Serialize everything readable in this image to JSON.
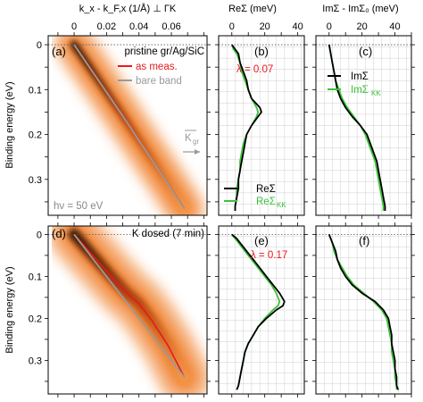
{
  "colors": {
    "red": "#e8191c",
    "gray": "#9a9a9a",
    "green": "#3bc23b",
    "black": "#000000",
    "mapLow": "#ffffff",
    "mapMid": "#f07f2a",
    "mapHigh": "#2a0b00",
    "grid": "#cfcfcf"
  },
  "arpes_axis": {
    "title": "k_x - k_F,x (1/Å) ⊥ ΓK",
    "ticks": [
      "0",
      "0.02",
      "0.04",
      "0.06"
    ],
    "tick_values": [
      0,
      0.02,
      0.04,
      0.06
    ],
    "xlim": [
      -0.016,
      0.082
    ]
  },
  "rs_axis": {
    "title": "ReΣ  (meV)",
    "ticks": [
      "0",
      "20",
      "40"
    ],
    "tick_values": [
      0,
      20,
      40
    ],
    "xlim": [
      -8,
      44
    ]
  },
  "is_axis": {
    "title": "ImΣ - ImΣ₀ (meV)",
    "ticks": [
      "0",
      "20",
      "40"
    ],
    "tick_values": [
      0,
      20,
      40
    ],
    "xlim": [
      -8,
      50
    ]
  },
  "y_axis": {
    "label": "Binding energy (eV)",
    "ticks": [
      "0",
      "0.1",
      "0.2",
      "0.3"
    ],
    "tick_values": [
      0,
      0.1,
      0.2,
      0.3
    ],
    "ylim": [
      -0.02,
      0.38
    ]
  },
  "panels": {
    "a": {
      "tag": "(a)",
      "title": "pristine gr/Ag/SiC",
      "legend_meas": "as meas.",
      "legend_bare": "bare band",
      "kgr_label": "K",
      "kgr_sub": "gr",
      "photon": "hν = 50 eV"
    },
    "b": {
      "tag": "(b)",
      "lambda": "λ = 0.07",
      "legend_re": "ReΣ",
      "legend_kk": "ReΣ",
      "legend_kk_sub": "KK"
    },
    "c": {
      "tag": "(c)",
      "legend_im": "ImΣ",
      "legend_kk": "ImΣ",
      "legend_kk_sub": "KK"
    },
    "d": {
      "tag": "(d)",
      "title": "K dosed (7 min)"
    },
    "e": {
      "tag": "(e)",
      "lambda": "λ = 0.17"
    },
    "f": {
      "tag": "(f)"
    }
  },
  "chart_data": [
    {
      "type": "heatmap",
      "panel": "a",
      "xlabel": "k_x - k_F,x (1/Å) ⊥ ΓK",
      "ylabel": "Binding energy (eV)",
      "xlim": [
        -0.016,
        0.082
      ],
      "ylim": [
        -0.02,
        0.38
      ],
      "series": [
        {
          "name": "as meas.",
          "x": [
            0.0,
            0.01,
            0.02,
            0.03,
            0.04,
            0.05,
            0.06,
            0.068
          ],
          "y": [
            0.0,
            0.052,
            0.105,
            0.158,
            0.212,
            0.266,
            0.32,
            0.365
          ]
        },
        {
          "name": "bare band",
          "x": [
            0.0,
            0.01,
            0.02,
            0.03,
            0.04,
            0.05,
            0.06,
            0.068
          ],
          "y": [
            0.0,
            0.053,
            0.106,
            0.159,
            0.213,
            0.267,
            0.321,
            0.366
          ]
        }
      ]
    },
    {
      "type": "line",
      "panel": "b",
      "xlabel": "ReΣ  (meV)",
      "xlim": [
        -8,
        44
      ],
      "ylim": [
        -0.02,
        0.38
      ],
      "series": [
        {
          "name": "ReΣ",
          "y": [
            0.0,
            0.01,
            0.02,
            0.04,
            0.06,
            0.08,
            0.1,
            0.12,
            0.14,
            0.15,
            0.16,
            0.18,
            0.2,
            0.22,
            0.24,
            0.26,
            0.28,
            0.3,
            0.32,
            0.34,
            0.36,
            0.37
          ],
          "x": [
            0,
            2,
            4,
            5,
            7,
            9,
            10,
            12,
            17,
            18,
            16,
            12,
            9,
            8,
            7,
            6,
            5,
            4,
            4,
            3,
            2,
            2
          ]
        },
        {
          "name": "ReΣ_KK",
          "y": [
            0.0,
            0.01,
            0.02,
            0.04,
            0.06,
            0.08,
            0.1,
            0.12,
            0.14,
            0.15,
            0.16,
            0.18,
            0.2,
            0.22,
            0.24,
            0.26,
            0.28,
            0.3,
            0.32,
            0.34,
            0.36,
            0.37
          ],
          "x": [
            0,
            1,
            3,
            5,
            6,
            8,
            10,
            12,
            15,
            16,
            15,
            12,
            9,
            7,
            6,
            5,
            5,
            4,
            3,
            3,
            2,
            2
          ]
        }
      ]
    },
    {
      "type": "line",
      "panel": "c",
      "xlabel": "ImΣ - ImΣ₀ (meV)",
      "xlim": [
        -8,
        50
      ],
      "ylim": [
        -0.02,
        0.38
      ],
      "series": [
        {
          "name": "ImΣ",
          "y": [
            0.0,
            0.02,
            0.04,
            0.06,
            0.08,
            0.1,
            0.12,
            0.14,
            0.16,
            0.18,
            0.2,
            0.22,
            0.24,
            0.26,
            0.28,
            0.3,
            0.32,
            0.34,
            0.36,
            0.37
          ],
          "x": [
            0,
            1,
            2,
            3,
            4,
            5,
            7,
            10,
            14,
            19,
            23,
            25,
            27,
            29,
            30,
            31,
            32,
            33,
            34,
            34
          ]
        },
        {
          "name": "ImΣ_KK",
          "y": [
            0.0,
            0.02,
            0.04,
            0.06,
            0.08,
            0.1,
            0.12,
            0.14,
            0.16,
            0.18,
            0.2,
            0.22,
            0.24,
            0.26,
            0.28,
            0.3,
            0.32,
            0.34,
            0.36,
            0.37
          ],
          "x": [
            0,
            1,
            2,
            3,
            4,
            6,
            8,
            11,
            15,
            19,
            22,
            24,
            26,
            28,
            29,
            30,
            31,
            32,
            33,
            33
          ]
        }
      ]
    },
    {
      "type": "heatmap",
      "panel": "d",
      "xlabel": "k_x - k_F,x (1/Å) ⊥ ΓK",
      "ylabel": "Binding energy (eV)",
      "xlim": [
        -0.016,
        0.082
      ],
      "ylim": [
        -0.02,
        0.38
      ],
      "series": [
        {
          "name": "as meas.",
          "x": [
            0.0,
            0.008,
            0.016,
            0.024,
            0.032,
            0.04,
            0.048,
            0.058,
            0.068
          ],
          "y": [
            0.0,
            0.035,
            0.07,
            0.105,
            0.138,
            0.165,
            0.205,
            0.265,
            0.34
          ]
        },
        {
          "name": "bare band",
          "x": [
            0.0,
            0.01,
            0.02,
            0.03,
            0.04,
            0.05,
            0.06,
            0.068
          ],
          "y": [
            0.0,
            0.05,
            0.1,
            0.15,
            0.2,
            0.25,
            0.3,
            0.34
          ]
        }
      ]
    },
    {
      "type": "line",
      "panel": "e",
      "xlabel": "ReΣ  (meV)",
      "xlim": [
        -8,
        44
      ],
      "ylim": [
        -0.02,
        0.38
      ],
      "series": [
        {
          "name": "ReΣ",
          "y": [
            0.0,
            0.01,
            0.02,
            0.04,
            0.06,
            0.08,
            0.1,
            0.12,
            0.14,
            0.16,
            0.17,
            0.18,
            0.2,
            0.22,
            0.24,
            0.26,
            0.28,
            0.3,
            0.32,
            0.34,
            0.36,
            0.37
          ],
          "x": [
            0,
            3,
            5,
            9,
            13,
            17,
            21,
            25,
            29,
            32,
            31,
            27,
            21,
            16,
            13,
            10,
            8,
            7,
            6,
            5,
            4,
            3
          ]
        },
        {
          "name": "ReΣ_KK",
          "y": [
            0.0,
            0.01,
            0.02,
            0.04,
            0.06,
            0.08,
            0.1,
            0.12,
            0.14,
            0.16,
            0.17,
            0.18,
            0.2,
            0.22,
            0.24,
            0.26,
            0.28,
            0.3,
            0.32,
            0.34,
            0.36,
            0.37
          ],
          "x": [
            0,
            2,
            4,
            8,
            12,
            16,
            20,
            24,
            27,
            29,
            28,
            25,
            20,
            16,
            13,
            10,
            8,
            7,
            6,
            5,
            4,
            3
          ]
        }
      ]
    },
    {
      "type": "line",
      "panel": "f",
      "xlabel": "ImΣ - ImΣ₀ (meV)",
      "xlim": [
        -8,
        50
      ],
      "ylim": [
        -0.02,
        0.38
      ],
      "series": [
        {
          "name": "ImΣ",
          "y": [
            0.0,
            0.02,
            0.04,
            0.06,
            0.08,
            0.1,
            0.12,
            0.14,
            0.16,
            0.18,
            0.2,
            0.22,
            0.24,
            0.26,
            0.28,
            0.3,
            0.32,
            0.34,
            0.36,
            0.37
          ],
          "x": [
            0,
            2,
            4,
            5,
            7,
            10,
            14,
            20,
            28,
            33,
            36,
            37,
            38,
            38,
            39,
            40,
            40,
            41,
            41,
            42
          ]
        },
        {
          "name": "ImΣ_KK",
          "y": [
            0.0,
            0.02,
            0.04,
            0.06,
            0.08,
            0.1,
            0.12,
            0.14,
            0.16,
            0.18,
            0.2,
            0.22,
            0.24,
            0.26,
            0.28,
            0.3,
            0.32,
            0.34,
            0.36,
            0.37
          ],
          "x": [
            0,
            2,
            3,
            5,
            8,
            11,
            15,
            21,
            27,
            32,
            35,
            36,
            37,
            38,
            38,
            39,
            40,
            40,
            41,
            41
          ]
        }
      ]
    }
  ]
}
